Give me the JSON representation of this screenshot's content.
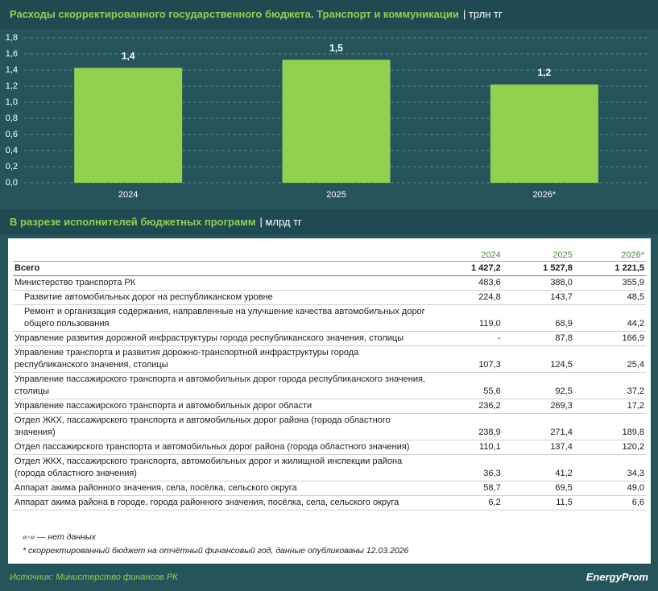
{
  "chart_data": {
    "type": "bar",
    "title": "Расходы скорректированного государственного бюджета. Транспорт и коммуникации",
    "unit": "| трлн тг",
    "categories": [
      "2024",
      "2025",
      "2026*"
    ],
    "values": [
      1.4272,
      1.5278,
      1.2215
    ],
    "value_labels": [
      "1,4",
      "1,5",
      "1,2"
    ],
    "color": "#92d050",
    "ylim": [
      0,
      1.8
    ],
    "yticks": [
      {
        "value": 0,
        "label": "0,0"
      },
      {
        "value": 0.2,
        "label": "0,2"
      },
      {
        "value": 0.4,
        "label": "0,4"
      },
      {
        "value": 0.6,
        "label": "0,6"
      },
      {
        "value": 0.8,
        "label": "0,8"
      },
      {
        "value": 1.0,
        "label": "1,0"
      },
      {
        "value": 1.2,
        "label": "1,2"
      },
      {
        "value": 1.4,
        "label": "1,4"
      },
      {
        "value": 1.6,
        "label": "1,6"
      },
      {
        "value": 1.8,
        "label": "1,8"
      }
    ],
    "grid": true
  },
  "section": {
    "title": "В разрезе исполнителей бюджетных программ",
    "unit": "| млрд тг"
  },
  "table": {
    "columns": [
      "2024",
      "2025",
      "2026*"
    ],
    "rows": [
      {
        "label": "Всего",
        "values": [
          "1 427,2",
          "1 527,8",
          "1 221,5"
        ]
      },
      {
        "label": "Министерство транспорта РК",
        "values": [
          "483,6",
          "388,0",
          "355,9"
        ]
      },
      {
        "label": "Развитие автомобильных дорог на республиканском уровне",
        "values": [
          "224,8",
          "143,7",
          "48,5"
        ],
        "indent": true
      },
      {
        "label": "Ремонт и организация содержания, направленные на улучшение качества автомобильных дорог общего пользования",
        "values": [
          "119,0",
          "68,9",
          "44,2"
        ],
        "indent": true
      },
      {
        "label": "Управление развития дорожной инфраструктуры города республиканского значения, столицы",
        "values": [
          "-",
          "87,8",
          "166,9"
        ]
      },
      {
        "label": "Управление транспорта и развития дорожно-транспортной инфраструктуры города республиканского значения, столицы",
        "values": [
          "107,3",
          "124,5",
          "25,4"
        ]
      },
      {
        "label": "Управление пассажирского транспорта и автомобильных дорог города республиканского значения, столицы",
        "values": [
          "55,6",
          "92,5",
          "37,2"
        ]
      },
      {
        "label": "Управление пассажирского транспорта и автомобильных дорог области",
        "values": [
          "236,2",
          "269,3",
          "17,2"
        ]
      },
      {
        "label": "Отдел ЖКХ, пассажирского транспорта и автомобильных дорог района (города областного значения)",
        "values": [
          "238,9",
          "271,4",
          "189,8"
        ]
      },
      {
        "label": "Отдел пассажирского транспорта и автомобильных дорог района (города областного значения)",
        "values": [
          "110,1",
          "137,4",
          "120,2"
        ]
      },
      {
        "label": "Отдел ЖКХ, пассажирского транспорта, автомобильных дорог и жилищной инспекции района (города областного значения)",
        "values": [
          "36,3",
          "41,2",
          "34,3"
        ]
      },
      {
        "label": "Аппарат акима районного значения, села, посёлка, сельского округа",
        "values": [
          "58,7",
          "69,5",
          "49,0"
        ]
      },
      {
        "label": "Аппарат акима района в городе, города районного значения, посёлка, села, сельского округа",
        "values": [
          "6,2",
          "11,5",
          "6,6"
        ]
      }
    ]
  },
  "notes": [
    "«-» — нет данных",
    "* скорректированный бюджет на отчётный финансовый год, данные опубликованы 12.03.2026"
  ],
  "source": "Источник: Министерство финансов РК",
  "logo": "EnergyProm"
}
